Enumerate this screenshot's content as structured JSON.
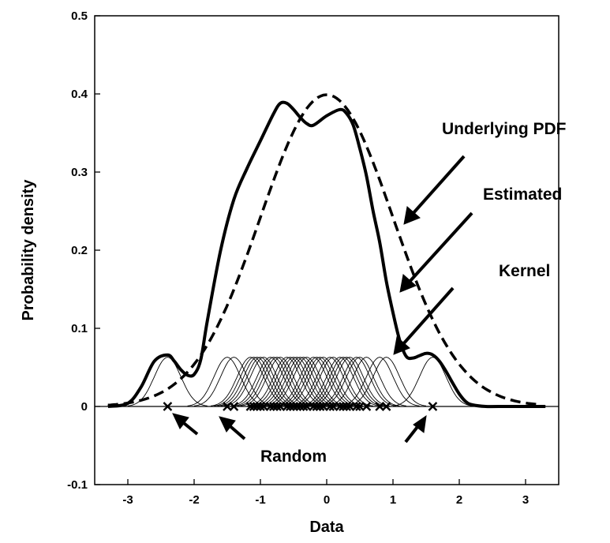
{
  "chart_data": {
    "type": "line",
    "title": "",
    "xlabel": "Data",
    "ylabel": "Probability density",
    "xlim": [
      -3.5,
      3.5
    ],
    "ylim": [
      -0.1,
      0.5
    ],
    "x_ticks": [
      -3,
      -2,
      -1,
      0,
      1,
      2,
      3
    ],
    "x_tick_labels": [
      "-3",
      "-2",
      "-1",
      "0",
      "1",
      "2",
      "3"
    ],
    "y_ticks": [
      -0.1,
      0,
      0.1,
      0.2,
      0.3,
      0.4,
      0.5
    ],
    "y_tick_labels": [
      "-0.1",
      "0",
      "0.1",
      "0.2",
      "0.3",
      "0.4",
      "0.5"
    ],
    "grid": false,
    "annotations": {
      "underlying_pdf": "Underlying PDF",
      "estimated": "Estimated",
      "kernel": "Kernel",
      "random": "Random"
    },
    "underlying_pdf": {
      "distribution": "standard normal",
      "mean": 0,
      "std": 1,
      "style": "dashed"
    },
    "estimated": {
      "style": "solid-thick",
      "x": [
        -3.3,
        -3.0,
        -2.8,
        -2.6,
        -2.4,
        -2.3,
        -2.2,
        -2.1,
        -2.0,
        -1.9,
        -1.8,
        -1.6,
        -1.4,
        -1.2,
        -1.0,
        -0.8,
        -0.7,
        -0.6,
        -0.5,
        -0.4,
        -0.3,
        -0.2,
        0.0,
        0.2,
        0.3,
        0.4,
        0.5,
        0.6,
        0.7,
        0.8,
        0.9,
        1.0,
        1.1,
        1.2,
        1.3,
        1.4,
        1.5,
        1.6,
        1.7,
        1.8,
        1.9,
        2.0,
        2.1,
        2.2,
        2.4,
        2.6,
        3.3
      ],
      "y": [
        0.0,
        0.004,
        0.025,
        0.058,
        0.066,
        0.058,
        0.047,
        0.04,
        0.041,
        0.06,
        0.11,
        0.2,
        0.265,
        0.305,
        0.34,
        0.375,
        0.388,
        0.388,
        0.38,
        0.37,
        0.362,
        0.36,
        0.372,
        0.38,
        0.375,
        0.36,
        0.33,
        0.295,
        0.25,
        0.21,
        0.16,
        0.12,
        0.085,
        0.064,
        0.062,
        0.065,
        0.068,
        0.066,
        0.058,
        0.045,
        0.03,
        0.016,
        0.006,
        0.002,
        0.0,
        0.0,
        0.0
      ]
    },
    "kernels": {
      "peak": 0.063,
      "bandwidth": 0.2
    },
    "random_samples": [
      -2.4,
      -1.5,
      -1.4,
      -1.15,
      -1.1,
      -1.05,
      -1.0,
      -0.95,
      -0.85,
      -0.8,
      -0.75,
      -0.7,
      -0.6,
      -0.55,
      -0.5,
      -0.45,
      -0.4,
      -0.35,
      -0.3,
      -0.2,
      -0.15,
      -0.1,
      -0.05,
      0.05,
      0.1,
      0.2,
      0.25,
      0.3,
      0.35,
      0.45,
      0.5,
      0.6,
      0.8,
      0.9,
      1.6
    ]
  }
}
